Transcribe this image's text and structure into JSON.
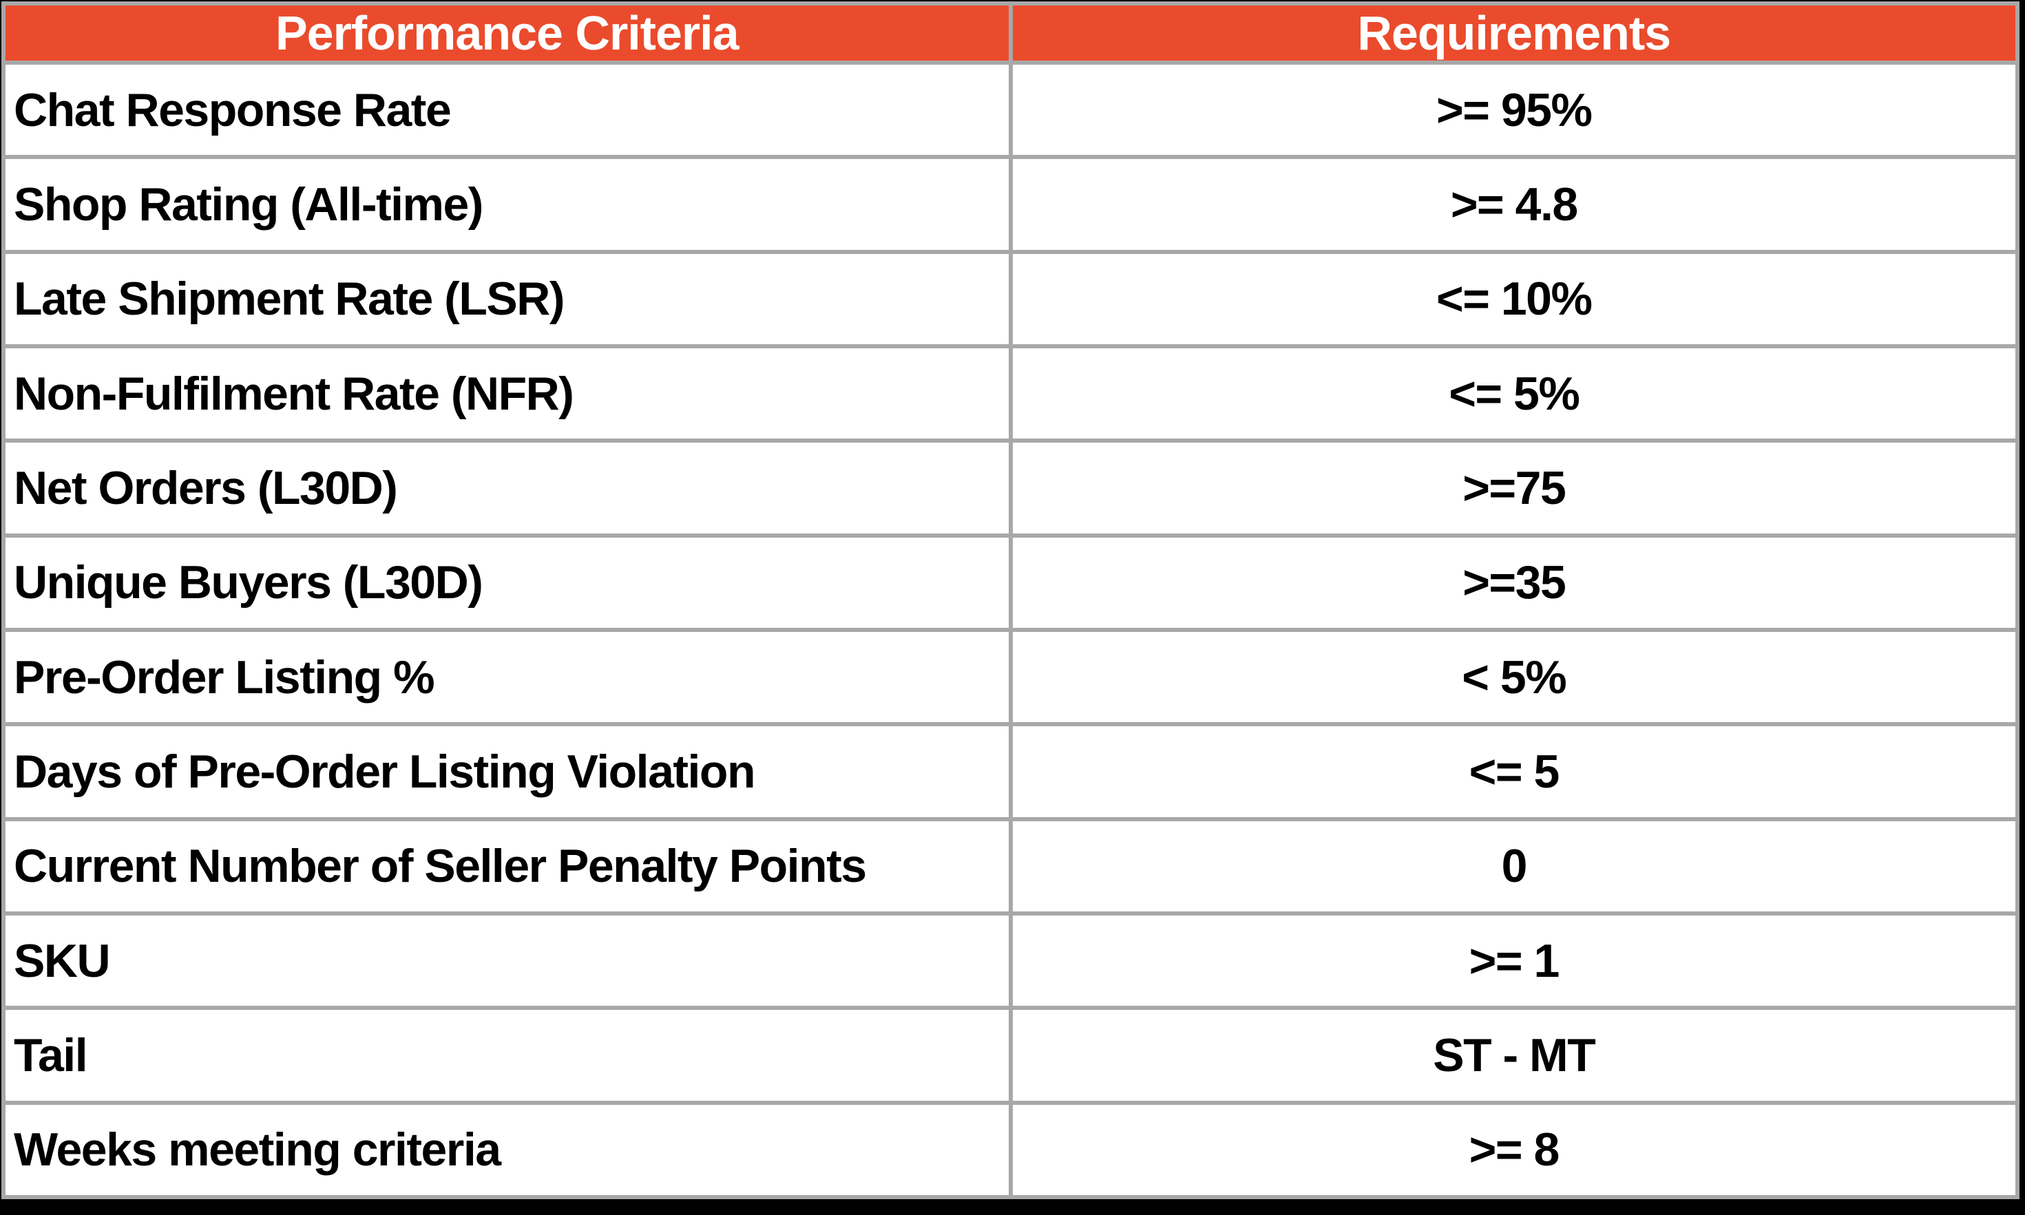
{
  "table": {
    "header": {
      "performance_criteria": "Performance Criteria",
      "requirements": "Requirements"
    },
    "rows": [
      {
        "criteria": "Chat Response Rate",
        "requirement": ">= 95%"
      },
      {
        "criteria": "Shop Rating (All-time)",
        "requirement": ">= 4.8"
      },
      {
        "criteria": "Late Shipment Rate (LSR)",
        "requirement": "<= 10%"
      },
      {
        "criteria": "Non-Fulfilment Rate (NFR)",
        "requirement": "<= 5%"
      },
      {
        "criteria": "Net Orders (L30D)",
        "requirement": ">=75"
      },
      {
        "criteria": "Unique Buyers (L30D)",
        "requirement": ">=35"
      },
      {
        "criteria": "Pre-Order Listing %",
        "requirement": "< 5%"
      },
      {
        "criteria": "Days of Pre-Order Listing Violation",
        "requirement": "<= 5"
      },
      {
        "criteria": "Current Number of Seller Penalty Points",
        "requirement": "0"
      },
      {
        "criteria": "SKU",
        "requirement": ">= 1"
      },
      {
        "criteria": "Tail",
        "requirement": "ST - MT"
      },
      {
        "criteria": "Weeks meeting criteria",
        "requirement": ">= 8"
      }
    ]
  },
  "colors": {
    "header_bg": "#ea4b2c",
    "header_text": "#ffffff",
    "row_bg": "#ffffff",
    "body_text": "#000000",
    "border": "#a8a8a8",
    "canvas_bg": "#000000"
  }
}
